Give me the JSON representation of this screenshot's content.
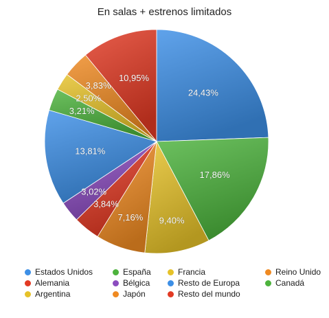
{
  "chart_data": {
    "type": "pie",
    "title": "En salas + estrenos limitados",
    "legend_position": "bottom",
    "slices": [
      {
        "label": "Estados Unidos",
        "value": 24.43,
        "value_label": "24,43%",
        "color": "#3d8fe6"
      },
      {
        "label": "España",
        "value": 17.86,
        "value_label": "17,86%",
        "color": "#4db33d"
      },
      {
        "label": "Francia",
        "value": 9.4,
        "value_label": "9,40%",
        "color": "#e6c229"
      },
      {
        "label": "Reino Unido",
        "value": 7.16,
        "value_label": "7,16%",
        "color": "#ef8a22"
      },
      {
        "label": "Alemania",
        "value": 3.84,
        "value_label": "3,84%",
        "color": "#e23a24"
      },
      {
        "label": "Bélgica",
        "value": 3.02,
        "value_label": "3,02%",
        "color": "#8b4cbf"
      },
      {
        "label": "Resto de Europa",
        "value": 13.81,
        "value_label": "13,81%",
        "color": "#3d8fe6"
      },
      {
        "label": "Canadá",
        "value": 3.21,
        "value_label": "3,21%",
        "color": "#4db33d"
      },
      {
        "label": "Argentina",
        "value": 2.5,
        "value_label": "2,50%",
        "color": "#e6c229"
      },
      {
        "label": "Japón",
        "value": 3.83,
        "value_label": "3,83%",
        "color": "#ef8a22"
      },
      {
        "label": "Resto del mundo",
        "value": 10.95,
        "value_label": "10,95%",
        "color": "#e23a24"
      }
    ],
    "legend_order": [
      "Estados Unidos",
      "España",
      "Francia",
      "Reino Unido",
      "Alemania",
      "Bélgica",
      "Resto de Europa",
      "Canadá",
      "Argentina",
      "Japón",
      "Resto del mundo"
    ]
  }
}
